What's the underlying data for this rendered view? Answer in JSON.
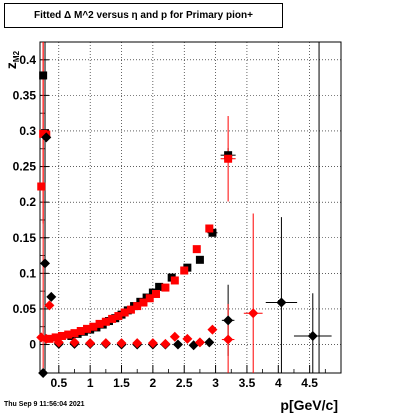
{
  "title": "Fitted Δ M^2 versus η and p for Primary pion+",
  "footer_date": "Thu Sep  9 11:56:04 2021",
  "chart_data": {
    "type": "scatter",
    "title": "Fitted Δ M^2 versus η and p for Primary pion+",
    "xlabel": "p[GeV/c]",
    "ylabel": "z_{M2}",
    "xlim": [
      0.2,
      5.0
    ],
    "ylim": [
      -0.04,
      0.425
    ],
    "grid": true,
    "x_ticks": [
      0.5,
      1,
      1.5,
      2,
      2.5,
      3,
      3.5,
      4,
      4.5
    ],
    "x_tick_labels": [
      "0.5",
      "1",
      "1.5",
      "2",
      "2.5",
      "3",
      "3.5",
      "4",
      "4.5"
    ],
    "y_ticks": [
      0,
      0.05,
      0.1,
      0.15,
      0.2,
      0.25,
      0.3,
      0.35,
      0.4
    ],
    "y_tick_labels": [
      "0",
      "0.05",
      "0.1",
      "0.15",
      "0.2",
      "0.25",
      "0.3",
      "0.35",
      "0.4"
    ],
    "colors": {
      "black": "#000000",
      "red": "#ff0000"
    },
    "series": [
      {
        "marker": "square",
        "color": "#000000",
        "points": [
          [
            0.25,
            0.378
          ],
          [
            0.28,
            0.297
          ],
          [
            0.7,
            0.012
          ],
          [
            0.8,
            0.015
          ],
          [
            0.9,
            0.018
          ],
          [
            1.0,
            0.021
          ],
          [
            1.1,
            0.024
          ],
          [
            1.2,
            0.028
          ],
          [
            1.3,
            0.033
          ],
          [
            1.4,
            0.037
          ],
          [
            1.5,
            0.042
          ],
          [
            1.6,
            0.048
          ],
          [
            1.7,
            0.054
          ],
          [
            1.8,
            0.06
          ],
          [
            1.9,
            0.066
          ],
          [
            2.0,
            0.073
          ],
          [
            2.1,
            0.081
          ],
          [
            2.3,
            0.094
          ],
          [
            2.55,
            0.108
          ],
          [
            2.75,
            0.119
          ],
          [
            2.95,
            0.157
          ],
          [
            3.2,
            0.266
          ]
        ]
      },
      {
        "marker": "square",
        "color": "#ff0000",
        "points": [
          [
            0.22,
            0.222
          ],
          [
            0.25,
            0.296
          ],
          [
            0.3,
            0.295
          ],
          [
            0.35,
            0.008
          ],
          [
            0.45,
            0.01
          ],
          [
            0.55,
            0.012
          ],
          [
            0.65,
            0.014
          ],
          [
            0.75,
            0.016
          ],
          [
            0.85,
            0.019
          ],
          [
            0.95,
            0.022
          ],
          [
            1.05,
            0.025
          ],
          [
            1.15,
            0.029
          ],
          [
            1.25,
            0.032
          ],
          [
            1.35,
            0.036
          ],
          [
            1.45,
            0.04
          ],
          [
            1.55,
            0.045
          ],
          [
            1.65,
            0.049
          ],
          [
            1.75,
            0.054
          ],
          [
            1.85,
            0.059
          ],
          [
            1.95,
            0.065
          ],
          [
            2.05,
            0.071
          ],
          [
            2.2,
            0.08
          ],
          [
            2.35,
            0.09
          ],
          [
            2.5,
            0.104
          ],
          [
            2.7,
            0.134
          ],
          [
            2.9,
            0.163
          ],
          [
            3.2,
            0.261
          ]
        ]
      },
      {
        "marker": "diamond",
        "color": "#000000",
        "points": [
          [
            0.25,
            -0.04
          ],
          [
            0.28,
            0.114
          ],
          [
            0.3,
            0.291
          ],
          [
            0.38,
            0.067
          ],
          [
            0.5,
            0.001
          ],
          [
            0.75,
            0.001
          ],
          [
            1.0,
            0.001
          ],
          [
            1.25,
            0.001
          ],
          [
            1.5,
            0.0
          ],
          [
            1.75,
            0.0
          ],
          [
            2.0,
            0.0
          ],
          [
            2.2,
            0.0
          ],
          [
            2.4,
            0.0
          ],
          [
            2.65,
            -0.001
          ],
          [
            2.9,
            0.003
          ],
          [
            3.2,
            0.034
          ],
          [
            4.05,
            0.059
          ],
          [
            4.55,
            0.012
          ]
        ]
      },
      {
        "marker": "diamond",
        "color": "#ff0000",
        "points": [
          [
            0.22,
            0.01
          ],
          [
            0.3,
            0.008
          ],
          [
            0.35,
            0.055
          ],
          [
            0.5,
            0.003
          ],
          [
            0.75,
            0.003
          ],
          [
            1.0,
            0.002
          ],
          [
            1.25,
            0.002
          ],
          [
            1.5,
            0.002
          ],
          [
            1.75,
            0.002
          ],
          [
            2.0,
            0.002
          ],
          [
            2.2,
            0.001
          ],
          [
            2.35,
            0.011
          ],
          [
            2.55,
            0.008
          ],
          [
            2.75,
            0.003
          ],
          [
            2.95,
            0.021
          ],
          [
            3.2,
            0.007
          ],
          [
            3.6,
            0.044
          ]
        ]
      }
    ]
  }
}
